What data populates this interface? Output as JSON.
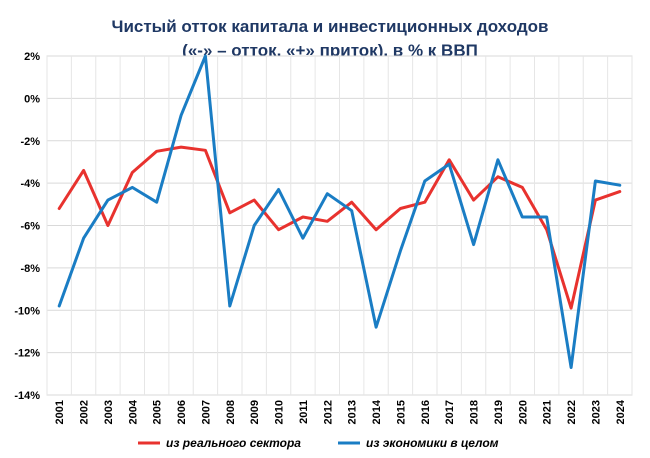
{
  "chart_data": {
    "type": "line",
    "title": "Чистый отток капитала и инвестиционных доходов",
    "subtitle": "(«-» – отток, «+» приток), в % к ВВП",
    "x": [
      "2001",
      "2002",
      "2003",
      "2004",
      "2005",
      "2006",
      "2007",
      "2008",
      "2009",
      "2010",
      "2011",
      "2012",
      "2013",
      "2014",
      "2015",
      "2016",
      "2017",
      "2018",
      "2019",
      "2020",
      "2021",
      "2022",
      "2023",
      "2024"
    ],
    "ylim": [
      -14,
      2
    ],
    "yticks": [
      "2%",
      "0%",
      "-2%",
      "-4%",
      "-6%",
      "-8%",
      "-10%",
      "-12%",
      "-14%"
    ],
    "grid": true,
    "legend": "bottom",
    "series": [
      {
        "name": "из реального сектора",
        "color": "#e8322e",
        "values": [
          -5.2,
          -3.4,
          -6.0,
          -3.5,
          -2.5,
          -2.3,
          -2.45,
          -5.4,
          -4.8,
          -6.2,
          -5.6,
          -5.8,
          -4.9,
          -6.2,
          -5.2,
          -4.9,
          -2.9,
          -4.8,
          -3.7,
          -4.2,
          -6.2,
          -9.9,
          -4.8,
          -4.4
        ]
      },
      {
        "name": "из экономики в целом",
        "color": "#1a7dc4",
        "values": [
          -9.8,
          -6.6,
          -4.8,
          -4.2,
          -4.9,
          -0.8,
          2.0,
          -9.8,
          -6.0,
          -4.3,
          -6.6,
          -4.5,
          -5.3,
          -10.8,
          -7.2,
          -3.9,
          -3.1,
          -6.9,
          -2.9,
          -5.6,
          -5.6,
          -12.7,
          -3.9,
          -4.1
        ]
      }
    ]
  }
}
